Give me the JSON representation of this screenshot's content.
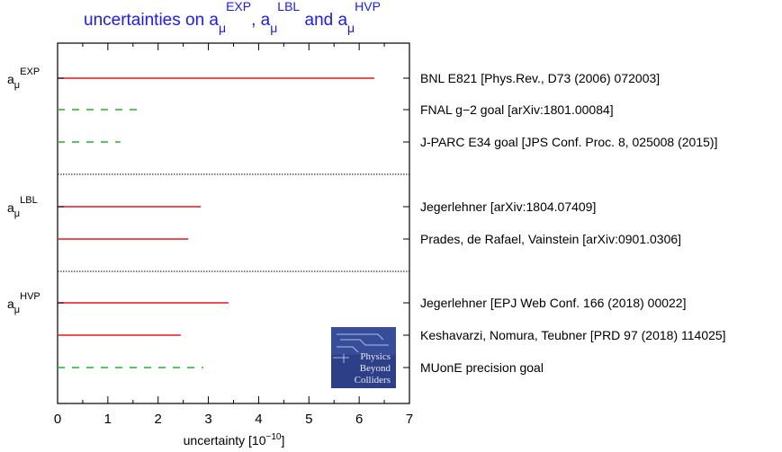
{
  "chart_data": {
    "type": "bar",
    "orientation": "horizontal",
    "title": {
      "prefix": "uncertainties on a",
      "sub": "μ",
      "parts": [
        {
          "sup": "EXP",
          "after": ", a"
        },
        {
          "sup": "LBL",
          "after": " and a"
        },
        {
          "sup": "HVP",
          "after": ""
        }
      ]
    },
    "xlabel": {
      "base": "uncertainty [10",
      "sup": "−10",
      "close": "]"
    },
    "xlim": [
      0,
      7
    ],
    "xticks": [
      "0",
      "1",
      "2",
      "3",
      "4",
      "5",
      "6",
      "7"
    ],
    "groups": [
      {
        "label": "a",
        "sub": "μ",
        "sup": "EXP",
        "rows": [
          0,
          1,
          2
        ]
      },
      {
        "label": "a",
        "sub": "μ",
        "sup": "LBL",
        "rows": [
          3,
          4
        ]
      },
      {
        "label": "a",
        "sub": "μ",
        "sup": "HVP",
        "rows": [
          5,
          6,
          7
        ]
      }
    ],
    "rows": [
      {
        "label": "BNL E821 [Phys.Rev., D73 (2006) 072003]",
        "value": 6.3,
        "style": "solid",
        "color": "#e8141c"
      },
      {
        "label": "FNAL g−2 goal [arXiv:1801.00084]",
        "value": 1.6,
        "style": "dashed",
        "color": "#22b522"
      },
      {
        "label": "J-PARC E34 goal [JPS Conf. Proc. 8, 025008 (2015)]",
        "value": 1.25,
        "style": "dashed",
        "color": "#22b522"
      },
      {
        "label": "Jegerlehner [arXiv:1804.07409]",
        "value": 2.85,
        "style": "solid",
        "color": "#e8141c"
      },
      {
        "label": "Prades, de Rafael, Vainstein [arXiv:0901.0306]",
        "value": 2.6,
        "style": "solid",
        "color": "#e8141c"
      },
      {
        "label": "Jegerlehner [EPJ Web Conf. 166 (2018) 00022]",
        "value": 3.4,
        "style": "solid",
        "color": "#e8141c"
      },
      {
        "label": "Keshavarzi, Nomura, Teubner [PRD 97 (2018) 114025]",
        "value": 2.45,
        "style": "solid",
        "color": "#e8141c"
      },
      {
        "label": "MUonE precision goal",
        "value": 2.9,
        "style": "dashed",
        "color": "#22b522"
      }
    ],
    "logo": {
      "lines": [
        "Physics",
        "Beyond",
        "Colliders"
      ],
      "bg": "#2d3f86"
    },
    "grid": false
  }
}
